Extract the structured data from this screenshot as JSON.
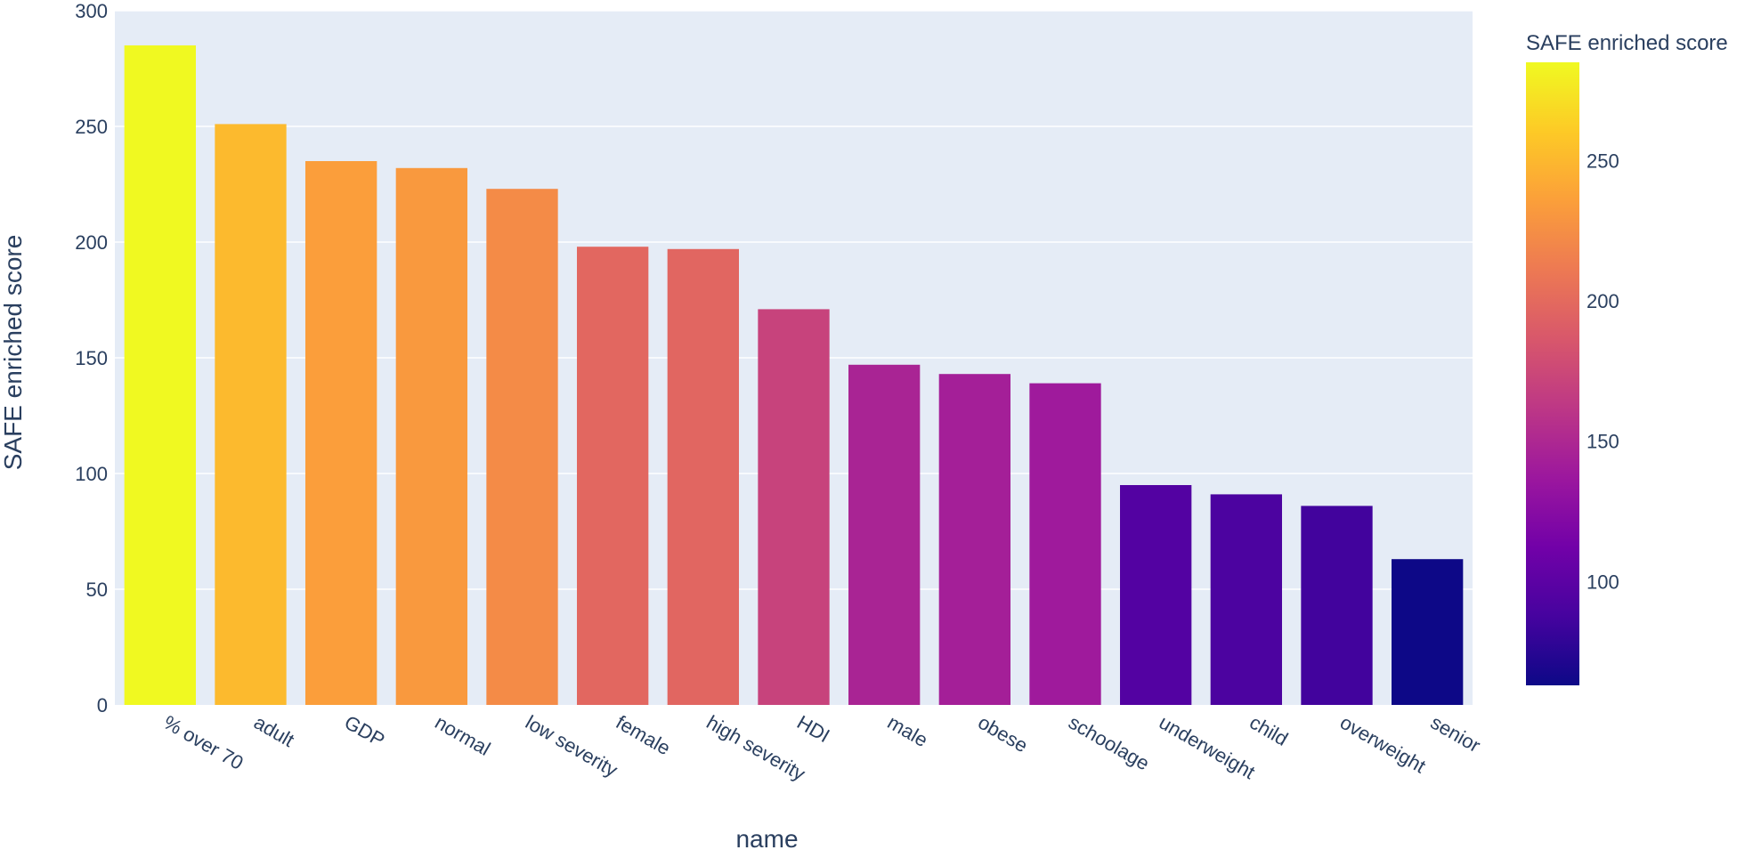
{
  "chart_data": {
    "type": "bar",
    "title": "",
    "xlabel": "name",
    "ylabel": "SAFE enriched score",
    "ylim": [
      0,
      300
    ],
    "yticks": [
      0,
      50,
      100,
      150,
      200,
      250,
      300
    ],
    "grid": true,
    "categories": [
      "% over 70",
      "adult",
      "GDP",
      "normal",
      "low severity",
      "female",
      "high severity",
      "HDI",
      "male",
      "obese",
      "schoolage",
      "underweight",
      "child",
      "overweight",
      "senior"
    ],
    "values": [
      285,
      251,
      235,
      232,
      223,
      198,
      197,
      171,
      147,
      143,
      139,
      95,
      91,
      86,
      63
    ],
    "colorbar": {
      "title": "SAFE enriched score",
      "range": [
        63,
        285
      ],
      "ticks": [
        100,
        150,
        200,
        250
      ],
      "colorscale": [
        "#0d0887",
        "#46039f",
        "#7201a8",
        "#9c179e",
        "#bd3786",
        "#d8576b",
        "#ed7953",
        "#fb9f3a",
        "#fdca26",
        "#f0f921"
      ],
      "placement": "right"
    },
    "colors": {
      "plot_background": "#e5ecf6",
      "grid": "#ffffff",
      "text": "#2a3f5f"
    }
  }
}
